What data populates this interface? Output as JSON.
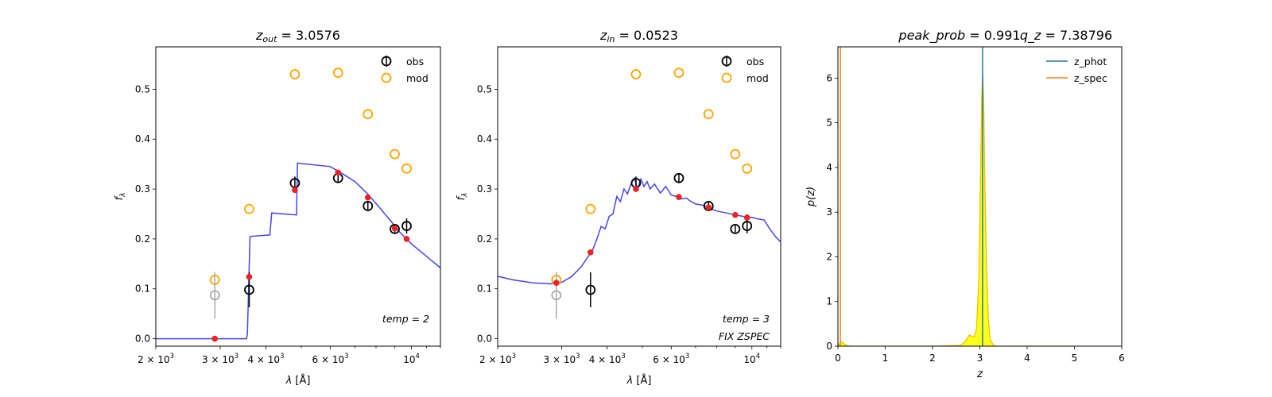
{
  "chart_data": [
    {
      "type": "scatter",
      "title_parts": {
        "var": "z",
        "sub": "out",
        "eq": " = 3.0576"
      },
      "xlabel": {
        "sym": "λ",
        "unit": " [Å]"
      },
      "ylabel": {
        "sym": "f",
        "sub": "λ"
      },
      "xscale": "log",
      "xlim": [
        2000,
        12000
      ],
      "ylim": [
        -0.015,
        0.585
      ],
      "xticks": [
        {
          "v": 2000,
          "m": "2",
          "e": "3"
        },
        {
          "v": 3000,
          "m": "3",
          "e": "3"
        },
        {
          "v": 4000,
          "m": "4",
          "e": "3"
        },
        {
          "v": 6000,
          "m": "6",
          "e": "3"
        },
        {
          "v": 10000,
          "m": "",
          "e": "4"
        }
      ],
      "yticks": [
        "0.0",
        "0.1",
        "0.2",
        "0.3",
        "0.4",
        "0.5"
      ],
      "legend": {
        "position": "upper right",
        "entries": [
          "obs",
          "mod"
        ]
      },
      "annotations": [
        {
          "text": "temp = 2"
        }
      ],
      "model_curve": {
        "x": [
          2000,
          3540,
          3560,
          3620,
          4100,
          4150,
          4850,
          4880,
          6000,
          6500,
          7000,
          7600,
          8200,
          8800,
          9300,
          10000,
          11000,
          12000
        ],
        "y": [
          0.0,
          0.0,
          0.01,
          0.205,
          0.208,
          0.252,
          0.248,
          0.352,
          0.345,
          0.33,
          0.315,
          0.29,
          0.262,
          0.235,
          0.213,
          0.19,
          0.165,
          0.142
        ]
      },
      "obs": {
        "x": [
          2900,
          3600,
          4800,
          6300,
          7600,
          9000,
          9700
        ],
        "y": [
          0.087,
          0.098,
          0.312,
          0.322,
          0.266,
          0.22,
          0.226
        ],
        "err": [
          0.047,
          0.035,
          0.013,
          0.01,
          0.008,
          0.007,
          0.015
        ],
        "excluded": [
          0
        ]
      },
      "mod": {
        "x": [
          2900,
          3600,
          4800,
          6300,
          7600,
          9000,
          9700
        ],
        "y": [
          0.118,
          0.26,
          0.53,
          0.533,
          0.45,
          0.37,
          0.341
        ]
      },
      "points": {
        "x": [
          2900,
          3600,
          4800,
          6300,
          7600,
          9000,
          9700
        ],
        "y": [
          0.0,
          0.124,
          0.298,
          0.333,
          0.283,
          0.221,
          0.2
        ]
      }
    },
    {
      "type": "scatter",
      "title_parts": {
        "var": "z",
        "sub": "in",
        "eq": " = 0.0523"
      },
      "xlabel": {
        "sym": "λ",
        "unit": " [Å]"
      },
      "ylabel": {
        "sym": "f",
        "sub": "λ"
      },
      "xscale": "log",
      "xlim": [
        2000,
        12000
      ],
      "ylim": [
        -0.015,
        0.585
      ],
      "xticks": [
        {
          "v": 2000,
          "m": "2",
          "e": "3"
        },
        {
          "v": 3000,
          "m": "3",
          "e": "3"
        },
        {
          "v": 4000,
          "m": "4",
          "e": "3"
        },
        {
          "v": 6000,
          "m": "6",
          "e": "3"
        },
        {
          "v": 10000,
          "m": "",
          "e": "4"
        }
      ],
      "yticks": [
        "0.0",
        "0.1",
        "0.2",
        "0.3",
        "0.4",
        "0.5"
      ],
      "legend": {
        "position": "upper right",
        "entries": [
          "obs",
          "mod"
        ]
      },
      "annotations": [
        {
          "text": "temp = 3"
        },
        {
          "text": "FIX ZSPEC"
        }
      ],
      "model_curve": {
        "x": [
          2000,
          2200,
          2500,
          2800,
          3000,
          3200,
          3400,
          3550,
          3650,
          3750,
          3850,
          3950,
          4050,
          4150,
          4250,
          4350,
          4450,
          4550,
          4650,
          4750,
          4850,
          4950,
          5050,
          5150,
          5250,
          5400,
          5600,
          5800,
          6000,
          6200,
          6400,
          6600,
          6800,
          7000,
          7300,
          7600,
          8000,
          8500,
          9000,
          9500,
          10000,
          10400,
          10800,
          11200,
          11600,
          12000
        ],
        "y": [
          0.125,
          0.118,
          0.112,
          0.11,
          0.113,
          0.125,
          0.145,
          0.165,
          0.178,
          0.2,
          0.225,
          0.22,
          0.245,
          0.25,
          0.285,
          0.275,
          0.3,
          0.29,
          0.31,
          0.322,
          0.3,
          0.32,
          0.305,
          0.315,
          0.3,
          0.31,
          0.292,
          0.305,
          0.288,
          0.285,
          0.28,
          0.282,
          0.275,
          0.27,
          0.268,
          0.262,
          0.256,
          0.252,
          0.248,
          0.245,
          0.243,
          0.24,
          0.238,
          0.22,
          0.205,
          0.194
        ]
      },
      "obs": {
        "x": [
          2900,
          3600,
          4800,
          6300,
          7600,
          9000,
          9700
        ],
        "y": [
          0.087,
          0.098,
          0.312,
          0.322,
          0.266,
          0.22,
          0.226
        ],
        "err": [
          0.047,
          0.035,
          0.013,
          0.01,
          0.008,
          0.007,
          0.015
        ],
        "excluded": [
          0
        ]
      },
      "mod": {
        "x": [
          2900,
          3600,
          4800,
          6300,
          7600,
          9000,
          9700
        ],
        "y": [
          0.118,
          0.26,
          0.53,
          0.533,
          0.45,
          0.37,
          0.341
        ]
      },
      "points": {
        "x": [
          2900,
          3600,
          4800,
          6300,
          7600,
          9000,
          9700
        ],
        "y": [
          0.112,
          0.173,
          0.3,
          0.284,
          0.263,
          0.248,
          0.243
        ]
      }
    },
    {
      "type": "area",
      "title_parts": {
        "a_var": "peak_prob",
        "a_eq": " = 0.991",
        "b_var": "q_z",
        "b_eq": " = 7.38796"
      },
      "xlabel": "z",
      "ylabel": "p(z)",
      "xlim": [
        0,
        6
      ],
      "ylim": [
        0,
        6.7
      ],
      "xticks": [
        "0",
        "1",
        "2",
        "3",
        "4",
        "5",
        "6"
      ],
      "yticks": [
        "0",
        "1",
        "2",
        "3",
        "4",
        "5",
        "6"
      ],
      "legend": {
        "position": "upper right",
        "entries": [
          "z_phot",
          "z_spec"
        ]
      },
      "colors": {
        "z_phot": "#1f77b4",
        "z_spec": "#ff7f0e",
        "fill": "#ffff00",
        "fill_edge": "#e8c400"
      },
      "z_phot": 3.0576,
      "z_spec": 0.0523,
      "pz_curve": {
        "x": [
          0,
          0.03,
          0.06,
          0.1,
          0.15,
          0.2,
          0.3,
          1.0,
          2.0,
          2.6,
          2.7,
          2.78,
          2.83,
          2.88,
          2.93,
          2.98,
          3.01,
          3.04,
          3.06,
          3.08,
          3.11,
          3.14,
          3.18,
          3.22,
          3.28,
          3.35,
          3.5,
          4.0,
          5.0
        ],
        "y": [
          0,
          0.05,
          0.1,
          0.08,
          0.04,
          0.01,
          0,
          0,
          0,
          0.02,
          0.12,
          0.25,
          0.22,
          0.2,
          0.4,
          1.5,
          3.5,
          5.6,
          6.1,
          5.5,
          3.5,
          1.8,
          0.6,
          0.15,
          0.03,
          0,
          0,
          0,
          0
        ]
      }
    }
  ]
}
